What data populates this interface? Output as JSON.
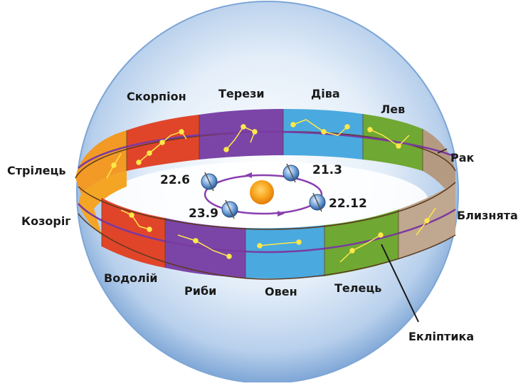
{
  "constellations": {
    "scorpio": "Скорпіон",
    "libra": "Терези",
    "virgo": "Діва",
    "leo": "Лев",
    "cancer": "Рак",
    "sagittarius": "Стрілець",
    "capricorn": "Козоріг",
    "gemini": "Близнята",
    "aquarius": "Водолій",
    "pisces": "Риби",
    "aries": "Овен",
    "taurus": "Телець"
  },
  "ecliptic_label": "Екліптика",
  "dates": {
    "summer": "22.6",
    "spring": "21.3",
    "autumn": "23.9",
    "winter": "22.12"
  },
  "colors": {
    "sphere": "#a9c6e6",
    "orbit": "#8a3fb0",
    "ecliptic": "#7a3aa0",
    "sun": "#f39a12",
    "star": "#ffe84a"
  }
}
